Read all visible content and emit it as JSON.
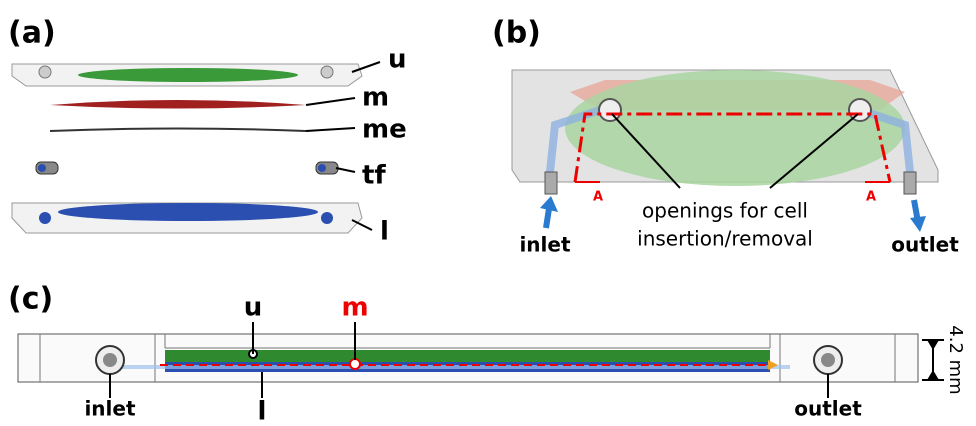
{
  "panels": [
    {
      "label": "(a)",
      "parts": [
        "u",
        "m",
        "me",
        "tf",
        "l"
      ]
    },
    {
      "label": "(b)",
      "section_marks": [
        "A",
        "A"
      ],
      "callout": [
        "openings for cell",
        "insertion/removal"
      ],
      "inlet": "inlet",
      "outlet": "outlet"
    },
    {
      "label": "(c)",
      "layers": [
        "u",
        "m",
        "l"
      ],
      "inlet": "inlet",
      "outlet": "outlet",
      "thickness": "4.2 mm"
    }
  ]
}
